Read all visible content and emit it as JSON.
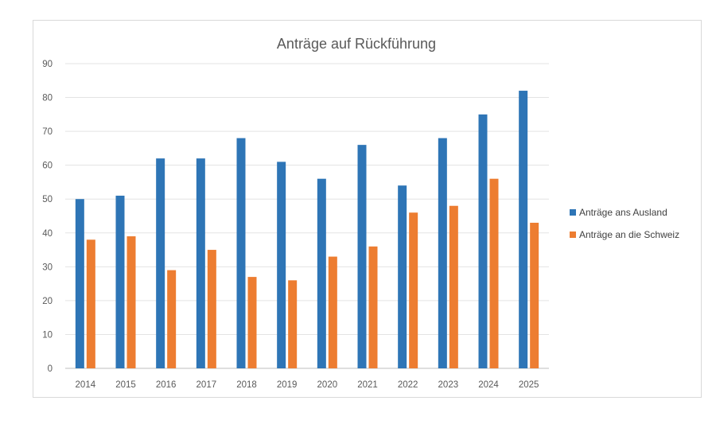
{
  "chart_data": {
    "type": "bar",
    "title": "Anträge auf Rückführung",
    "xlabel": "",
    "ylabel": "",
    "categories": [
      "2014",
      "2015",
      "2016",
      "2017",
      "2018",
      "2019",
      "2020",
      "2021",
      "2022",
      "2023",
      "2024",
      "2025"
    ],
    "series": [
      {
        "name": "Anträge ans Ausland",
        "color": "#2e75b6",
        "values": [
          50,
          51,
          62,
          62,
          68,
          61,
          56,
          66,
          54,
          68,
          75,
          82
        ]
      },
      {
        "name": "Anträge an die Schweiz",
        "color": "#ed7d31",
        "values": [
          38,
          39,
          29,
          35,
          27,
          26,
          33,
          36,
          46,
          48,
          56,
          43
        ]
      }
    ],
    "ylim": [
      0,
      90
    ],
    "yticks": [
      0,
      10,
      20,
      30,
      40,
      50,
      60,
      70,
      80,
      90
    ],
    "grid": true,
    "legend_position": "right"
  }
}
